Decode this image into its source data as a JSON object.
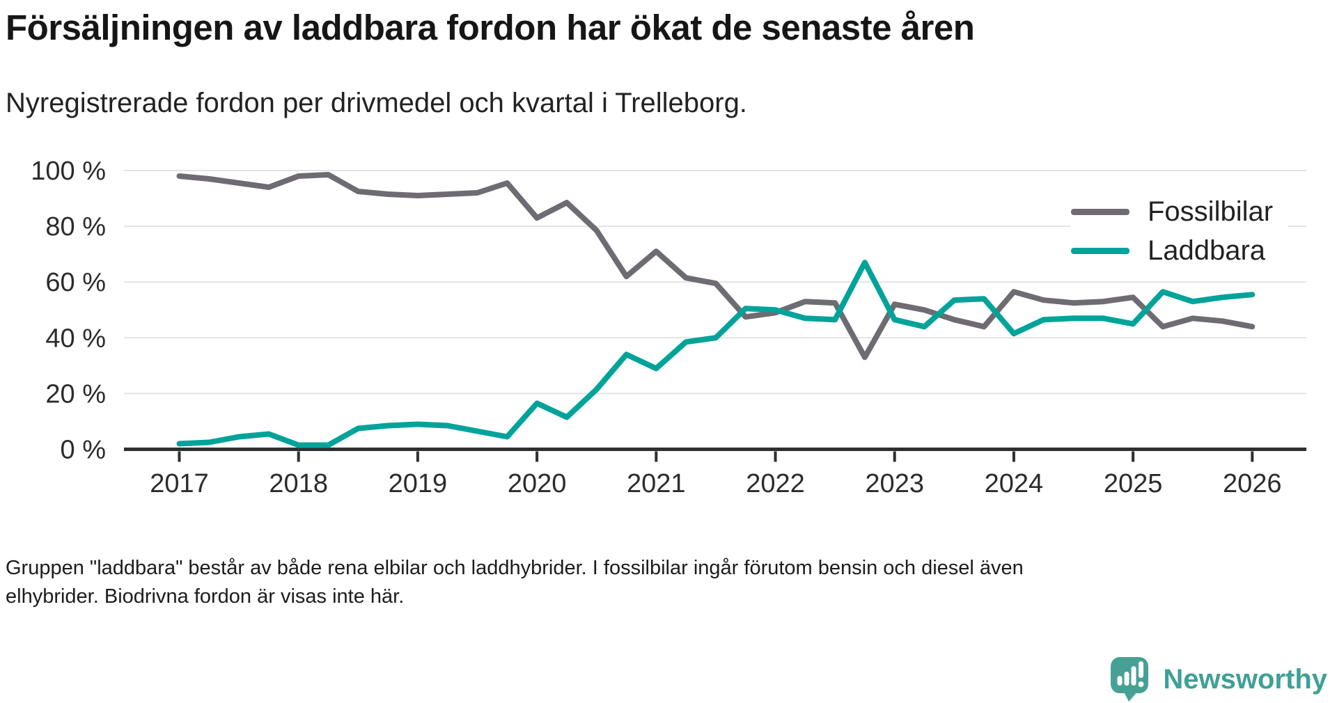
{
  "header": {
    "title": "Försäljningen av laddbara fordon har ökat de senaste åren",
    "subtitle": "Nyregistrerade fordon per drivmedel och kvartal i Trelleborg."
  },
  "chart_data": {
    "type": "line",
    "title": "Försäljningen av laddbara fordon har ökat de senaste åren",
    "subtitle": "Nyregistrerade fordon per drivmedel och kvartal i Trelleborg.",
    "x_unit": "quarter",
    "quarters": [
      "2017-Q1",
      "2017-Q2",
      "2017-Q3",
      "2017-Q4",
      "2018-Q1",
      "2018-Q2",
      "2018-Q3",
      "2018-Q4",
      "2019-Q1",
      "2019-Q2",
      "2019-Q3",
      "2019-Q4",
      "2020-Q1",
      "2020-Q2",
      "2020-Q3",
      "2020-Q4",
      "2021-Q1",
      "2021-Q2",
      "2021-Q3",
      "2021-Q4",
      "2022-Q1",
      "2022-Q2",
      "2022-Q3",
      "2022-Q4",
      "2023-Q1",
      "2023-Q2",
      "2023-Q3",
      "2023-Q4",
      "2024-Q1",
      "2024-Q2",
      "2024-Q3",
      "2024-Q4",
      "2025-Q1",
      "2025-Q2",
      "2025-Q3",
      "2025-Q4",
      "2026-Q1"
    ],
    "x_tick_years": [
      "2017",
      "2018",
      "2019",
      "2020",
      "2021",
      "2022",
      "2023",
      "2024",
      "2025",
      "2026"
    ],
    "y_ticks": [
      0,
      20,
      40,
      60,
      80,
      100
    ],
    "y_tick_suffix": " %",
    "ylim": [
      0,
      100
    ],
    "grid": "horizontal",
    "legend_position": "top-right",
    "series": [
      {
        "name": "Fossilbilar",
        "color": "#6f6b72",
        "values": [
          98,
          97,
          95.5,
          94,
          98,
          98.5,
          92.5,
          91.5,
          91,
          91.5,
          92,
          95.5,
          83,
          88.5,
          78.5,
          62,
          71,
          61.5,
          59.5,
          47.5,
          49,
          53,
          52.5,
          33,
          52,
          50,
          46.5,
          44,
          56.5,
          53.5,
          52.5,
          53,
          54.5,
          44,
          47,
          46,
          44
        ]
      },
      {
        "name": "Laddbara",
        "color": "#00a39a",
        "values": [
          2,
          2.5,
          4.5,
          5.5,
          1.5,
          1.5,
          7.5,
          8.5,
          9,
          8.5,
          6.5,
          4.5,
          16.5,
          11.5,
          21.5,
          34,
          29,
          38.5,
          40,
          50.5,
          50,
          47,
          46.5,
          67,
          46.5,
          44,
          53.5,
          54,
          41.5,
          46.5,
          47,
          47,
          45,
          56.5,
          53,
          54.5,
          55.5
        ]
      }
    ]
  },
  "footer": {
    "lines": [
      "Gruppen \"laddbara\" består av både rena elbilar och laddhybrider. I fossilbilar ingår förutom bensin och diesel även",
      "elhybrider. Biodrivna fordon är visas inte här."
    ]
  },
  "logo": {
    "text": "Newsworthy",
    "color": "#3fa096",
    "bubble_color": "#46a195"
  }
}
